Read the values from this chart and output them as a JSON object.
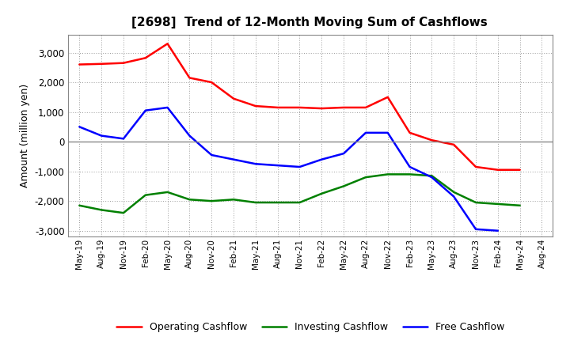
{
  "title": "[2698]  Trend of 12-Month Moving Sum of Cashflows",
  "ylabel": "Amount (million yen)",
  "x_labels": [
    "May-19",
    "Aug-19",
    "Nov-19",
    "Feb-20",
    "May-20",
    "Aug-20",
    "Nov-20",
    "Feb-21",
    "May-21",
    "Aug-21",
    "Nov-21",
    "Feb-22",
    "May-22",
    "Aug-22",
    "Nov-22",
    "Feb-23",
    "May-23",
    "Aug-23",
    "Nov-23",
    "Feb-24",
    "May-24",
    "Aug-24"
  ],
  "operating": [
    2600,
    2620,
    2650,
    2820,
    3300,
    2150,
    2000,
    1450,
    1200,
    1150,
    1150,
    1120,
    1150,
    1150,
    1500,
    300,
    50,
    -100,
    -850,
    -950,
    -950,
    null
  ],
  "investing": [
    -2150,
    -2300,
    -2400,
    -1800,
    -1700,
    -1950,
    -2000,
    -1950,
    -2050,
    -2050,
    -2050,
    -1750,
    -1500,
    -1200,
    -1100,
    -1100,
    -1150,
    -1700,
    -2050,
    -2100,
    -2150,
    null
  ],
  "free": [
    500,
    200,
    100,
    1050,
    1150,
    200,
    -450,
    -600,
    -750,
    -800,
    -850,
    -600,
    -400,
    300,
    300,
    -850,
    -1200,
    -1850,
    -2950,
    -3000,
    null,
    null
  ],
  "ylim": [
    -3200,
    3600
  ],
  "yticks": [
    -3000,
    -2000,
    -1000,
    0,
    1000,
    2000,
    3000
  ],
  "colors": {
    "operating": "#ff0000",
    "investing": "#008000",
    "free": "#0000ff"
  },
  "legend": [
    "Operating Cashflow",
    "Investing Cashflow",
    "Free Cashflow"
  ],
  "background": "#ffffff",
  "grid_color": "#999999"
}
